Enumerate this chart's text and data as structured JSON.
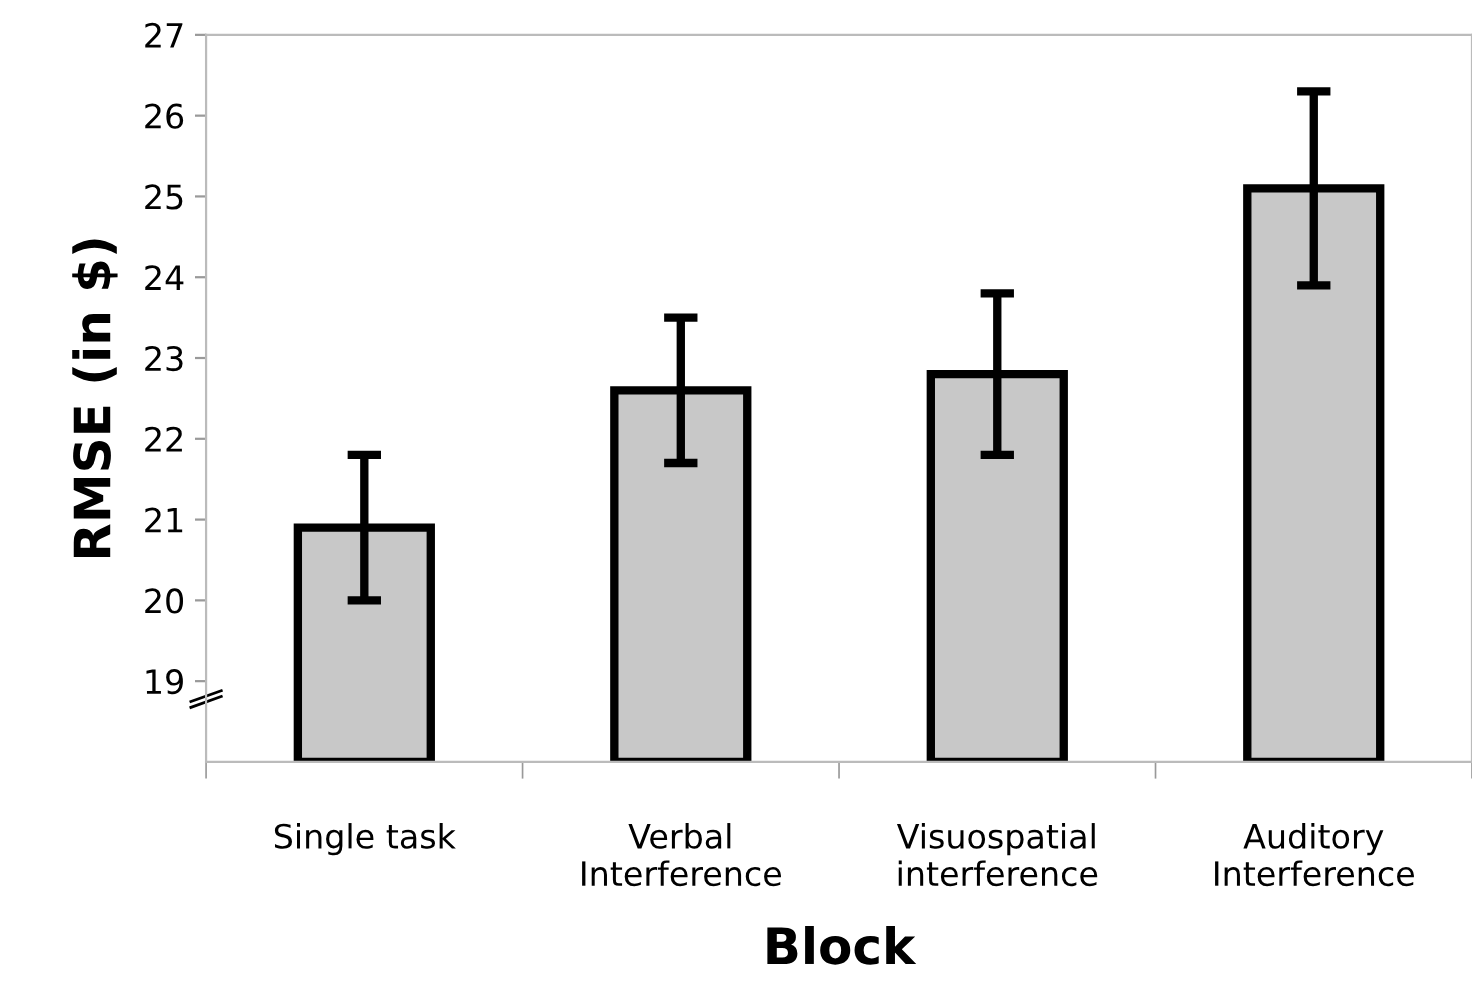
{
  "chart_data": {
    "type": "bar",
    "xlabel": "Block",
    "ylabel": "RMSE (in $)",
    "categories": [
      "Single task",
      "Verbal\nInterference",
      "Visuospatial\ninterference",
      "Auditory\nInterference"
    ],
    "values": [
      20.9,
      22.6,
      22.8,
      25.1
    ],
    "errors": [
      [
        20.0,
        21.8
      ],
      [
        21.7,
        23.5
      ],
      [
        21.8,
        23.8
      ],
      [
        23.9,
        26.3
      ]
    ],
    "color": "#c8c8c8",
    "ylim": [
      18,
      27
    ],
    "yticks": [
      19,
      20,
      21,
      22,
      23,
      24,
      25,
      26,
      27
    ],
    "grid": false,
    "legend": false
  }
}
